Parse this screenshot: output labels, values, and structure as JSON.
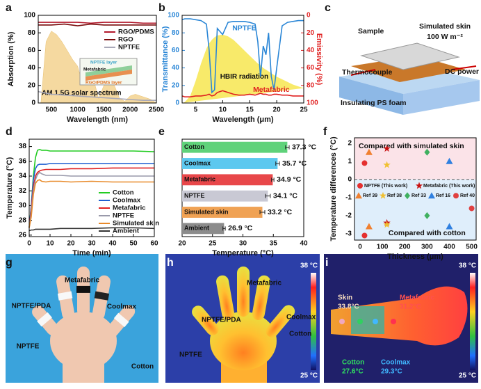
{
  "chart_data": [
    {
      "type": "line",
      "label": "a",
      "xlabel": "Wavelength (nm)",
      "ylabel": "Absorption (%)",
      "x": [
        250,
        500,
        750,
        1000,
        1250,
        1500,
        1750,
        2000,
        2250,
        2500
      ],
      "series": [
        {
          "name": "RGO/PDMS",
          "color": "#b2182b",
          "values": [
            92,
            92,
            92,
            92,
            91,
            92,
            92,
            92,
            91,
            91
          ]
        },
        {
          "name": "RGO",
          "color": "#7a0c0c",
          "values": [
            89,
            89,
            90,
            88,
            90,
            89,
            89,
            89,
            89,
            89
          ]
        },
        {
          "name": "NPTFE",
          "color": "#a8a8b8",
          "values": [
            13,
            10,
            9,
            8,
            7,
            6,
            5,
            4,
            3,
            3
          ]
        }
      ],
      "spectrum": {
        "color": "#f5d9a0",
        "x": [
          300,
          400,
          500,
          600,
          700,
          800,
          900,
          1000,
          1100,
          1200,
          1300,
          1400,
          1500,
          1600,
          1700,
          1800,
          1900,
          2000,
          2100,
          2200,
          2300,
          2400,
          2500
        ],
        "values": [
          0,
          70,
          82,
          78,
          70,
          60,
          50,
          42,
          20,
          35,
          28,
          5,
          20,
          22,
          20,
          5,
          2,
          8,
          10,
          8,
          6,
          4,
          0
        ]
      },
      "spectrum_label": "AM 1.5G solar spectrum",
      "inset_labels": [
        "NPTFE layer",
        "Metafabric",
        "RGO/PDMS layer"
      ],
      "xlim": [
        250,
        2500
      ],
      "xticks": [
        500,
        1000,
        1500,
        2000,
        2500
      ],
      "ylim": [
        0,
        100
      ],
      "yticks": [
        0,
        20,
        40,
        60,
        80,
        100
      ],
      "legend": "upper-right"
    },
    {
      "type": "dual_line",
      "label": "b",
      "xlabel": "Wavelength (μm)",
      "ylabel": "Transmittance (%)",
      "y2label": "Emissivity (%)",
      "x": [
        2.5,
        3,
        4,
        5,
        6,
        7,
        7.5,
        8,
        8.5,
        9,
        10,
        11,
        12,
        13,
        14,
        15,
        16,
        16.5,
        17,
        17.5,
        18,
        18.5,
        19,
        19.5,
        20,
        21,
        22,
        23,
        24,
        25
      ],
      "series": [
        {
          "name": "NPTFE",
          "color": "#2a86d6",
          "values": [
            95,
            96,
            96,
            95,
            94,
            90,
            60,
            12,
            15,
            85,
            78,
            92,
            93,
            93,
            93,
            92,
            90,
            70,
            30,
            65,
            55,
            80,
            30,
            15,
            40,
            88,
            92,
            93,
            94,
            94
          ]
        },
        {
          "name": "Metafabric",
          "color": "#e02020",
          "axis": "y2",
          "values": [
            92,
            93,
            93,
            92,
            92,
            91,
            90,
            92,
            91,
            88,
            86,
            88,
            90,
            91,
            91,
            90,
            91,
            90,
            89,
            90,
            90,
            91,
            91,
            90,
            90,
            91,
            91,
            92,
            92,
            92
          ]
        }
      ],
      "spectrum": {
        "color": "#f8ea6a",
        "values": [
          0,
          1,
          8,
          25,
          45,
          62,
          68,
          72,
          75,
          77,
          78,
          76,
          72,
          66,
          60,
          54,
          48,
          45,
          43,
          40,
          38,
          36,
          34,
          32,
          30,
          27,
          24,
          21,
          19,
          17
        ]
      },
      "spectrum_label": "HBIR radiation",
      "xlim": [
        2.5,
        25
      ],
      "xticks": [
        5,
        10,
        15,
        20,
        25
      ],
      "ylim": [
        0,
        100
      ],
      "yticks": [
        0,
        20,
        40,
        60,
        80,
        100
      ],
      "y2lim": [
        0,
        100
      ],
      "y2ticks": [
        0,
        20,
        40,
        60,
        80,
        100
      ],
      "y2_inverted": true
    },
    {
      "type": "line",
      "label": "d",
      "xlabel": "Time (min)",
      "ylabel": "Temperature (°C)",
      "x": [
        0,
        1,
        2,
        3,
        4,
        5,
        6,
        8,
        10,
        15,
        20,
        30,
        40,
        50,
        60
      ],
      "series": [
        {
          "name": "Cotton",
          "color": "#22cc22",
          "values": [
            27,
            30,
            34,
            36.5,
            37.5,
            37.6,
            37.5,
            37.5,
            37.4,
            37.4,
            37.4,
            37.4,
            37.4,
            37.4,
            37.3
          ]
        },
        {
          "name": "Coolmax",
          "color": "#1f5fd0",
          "values": [
            27,
            30,
            33.5,
            35,
            35.5,
            35.6,
            35.6,
            35.6,
            35.7,
            35.7,
            35.7,
            35.7,
            35.7,
            35.7,
            35.7
          ]
        },
        {
          "name": "Metafabric",
          "color": "#e02020",
          "values": [
            27,
            29.5,
            32.5,
            34,
            34.5,
            34.7,
            34.8,
            34.9,
            34.9,
            34.9,
            35,
            35,
            35.1,
            35.1,
            35.1
          ]
        },
        {
          "name": "NPTFE",
          "color": "#9999aa",
          "values": [
            27,
            29,
            32,
            33.5,
            34.2,
            34.5,
            34.3,
            34.1,
            34.1,
            34.1,
            34,
            34,
            34,
            34,
            34
          ]
        },
        {
          "name": "Simulated skin",
          "color": "#e88a2a",
          "values": [
            27,
            28.5,
            31.5,
            33,
            33.4,
            33.5,
            33.3,
            33.2,
            33.3,
            33.3,
            33.2,
            33.3,
            33.2,
            33.2,
            33.2
          ]
        },
        {
          "name": "Ambient",
          "color": "#333333",
          "values": [
            26.6,
            26.7,
            26.7,
            26.8,
            26.8,
            26.8,
            26.8,
            26.8,
            26.8,
            26.9,
            26.9,
            26.9,
            27,
            27,
            26.9
          ]
        }
      ],
      "xlim": [
        0,
        60
      ],
      "xticks": [
        0,
        10,
        20,
        30,
        40,
        50,
        60
      ],
      "ylim": [
        25.8,
        39
      ],
      "yticks": [
        26,
        28,
        30,
        32,
        34,
        36,
        38
      ],
      "legend": "lower-right"
    },
    {
      "type": "hbar",
      "label": "e",
      "xlabel": "Temperature (°C)",
      "categories": [
        "Cotton",
        "Coolmax",
        "Metafabric",
        "NPTFE",
        "Simulated skin",
        "Ambient"
      ],
      "values": [
        37.3,
        35.7,
        34.9,
        34.1,
        33.2,
        26.9
      ],
      "value_labels": [
        "37.3 °C",
        "35.7 °C",
        "34.9 °C",
        "34.1 °C",
        "33.2 °C",
        "26.9 °C"
      ],
      "errors": [
        0.3,
        0.3,
        0.2,
        0.4,
        0.4,
        0.2
      ],
      "colors": [
        "#5fd27a",
        "#5cc8ef",
        "#e8474a",
        "#c9c9d4",
        "#f0a254",
        "#8c8c8c"
      ],
      "xlim": [
        20,
        40
      ],
      "xticks": [
        20,
        25,
        30,
        35,
        40
      ]
    },
    {
      "type": "scatter",
      "label": "f",
      "xlabel": "Thickness (μm)",
      "ylabel": "Temperature differences (°C)",
      "series": [
        {
          "name": "NPTFE (This work)",
          "color": "#e53030",
          "marker": "circle",
          "x": [
            20,
            20
          ],
          "values": [
            0.9,
            -3.1
          ]
        },
        {
          "name": "Metafabric (This work)",
          "color": "#c81010",
          "marker": "star",
          "x": [
            120,
            120
          ],
          "values": [
            1.7,
            -2.4
          ]
        },
        {
          "name": "Ref 39",
          "color": "#f08030",
          "marker": "triangle",
          "x": [
            40,
            40
          ],
          "values": [
            1.5,
            -2.6
          ]
        },
        {
          "name": "Ref 38",
          "color": "#f0c030",
          "marker": "star",
          "x": [
            120,
            120
          ],
          "values": [
            0.8,
            -2.5
          ]
        },
        {
          "name": "Ref 33",
          "color": "#40b060",
          "marker": "diamond",
          "x": [
            300,
            300
          ],
          "values": [
            1.5,
            -2.0
          ]
        },
        {
          "name": "Ref 16",
          "color": "#3080e0",
          "marker": "triangle",
          "x": [
            400,
            400
          ],
          "values": [
            1.0,
            -2.6
          ]
        },
        {
          "name": "Ref 40",
          "color": "#e04040",
          "marker": "circle",
          "x": [
            500
          ],
          "values": [
            -1.6
          ]
        }
      ],
      "region_labels": [
        "Compared with simulated skin",
        "Compared with cotton"
      ],
      "xlim": [
        -25,
        520
      ],
      "xticks": [
        0,
        100,
        200,
        300,
        400,
        500
      ],
      "ylim": [
        -3.35,
        2.3
      ],
      "yticks": [
        -3,
        -2,
        -1,
        0,
        1,
        2
      ]
    }
  ],
  "schematic": {
    "label": "c",
    "texts": [
      "Sample",
      "Simulated skin",
      "100 W m⁻²",
      "Thermocouple",
      "DC power",
      "Insulating PS foam"
    ]
  },
  "photos": [
    {
      "label": "g",
      "texts": [
        "Metafabric",
        "NPTFE/PDA",
        "Coolmax",
        "NPTFE",
        "Cotton"
      ]
    },
    {
      "label": "h",
      "texts": [
        "Metafabric",
        "NPTFE/PDA",
        "Coolmax",
        "Cotton",
        "NPTFE",
        "38 °C",
        "25 °C"
      ]
    },
    {
      "label": "i",
      "texts": [
        "Skin",
        "33.8°C",
        "Metafabric",
        "31.2°C",
        "Cotton",
        "27.6°C",
        "Coolmax",
        "29.3°C",
        "38 °C",
        "25 °C"
      ]
    }
  ]
}
